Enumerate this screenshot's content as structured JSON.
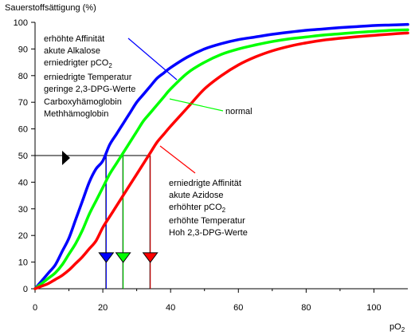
{
  "chart_data": {
    "type": "line",
    "title": "",
    "ylabel": "Sauerstoffsättigung (%)",
    "xlabel": "pO2",
    "xlabel_main": "pO",
    "xlabel_sub": "2",
    "xlim": [
      0,
      110
    ],
    "ylim": [
      0,
      100
    ],
    "x_ticks": [
      0,
      20,
      40,
      60,
      80,
      100
    ],
    "y_ticks": [
      0,
      10,
      20,
      30,
      40,
      50,
      60,
      70,
      80,
      90,
      100
    ],
    "grid": false,
    "series": [
      {
        "name": "",
        "color": "#0000ff",
        "p50": 21,
        "x": [
          0,
          2,
          4,
          6,
          8,
          10,
          12,
          14,
          16,
          18,
          20,
          22,
          24,
          26,
          28,
          30,
          32,
          34,
          36,
          38,
          40,
          45,
          50,
          55,
          60,
          65,
          70,
          75,
          80,
          85,
          90,
          95,
          100,
          105,
          110
        ],
        "y": [
          0,
          3,
          6,
          9,
          14,
          19,
          26,
          33,
          40,
          45,
          48,
          54,
          58,
          62,
          66,
          70,
          73,
          76,
          79,
          81,
          83,
          87,
          90,
          92,
          93.5,
          94.5,
          95.5,
          96.3,
          97,
          97.5,
          98,
          98.4,
          98.8,
          99,
          99.2
        ]
      },
      {
        "name": "normal",
        "color": "#00ff00",
        "p50": 26,
        "x": [
          0,
          2,
          4,
          6,
          8,
          10,
          12,
          14,
          16,
          18,
          20,
          22,
          24,
          26,
          28,
          30,
          32,
          34,
          36,
          38,
          40,
          45,
          50,
          55,
          60,
          65,
          70,
          75,
          80,
          85,
          90,
          95,
          100,
          105,
          110
        ],
        "y": [
          0,
          2,
          4,
          6,
          9,
          13,
          17,
          22,
          28,
          33,
          38,
          43,
          47,
          51,
          55,
          59,
          63,
          66,
          69,
          72,
          75,
          81,
          85,
          88,
          90,
          91.5,
          92.8,
          93.8,
          94.5,
          95.2,
          95.7,
          96.2,
          96.6,
          97,
          97.2
        ]
      },
      {
        "name": "",
        "color": "#ff0000",
        "p50": 34,
        "x": [
          0,
          2,
          4,
          6,
          8,
          10,
          12,
          14,
          16,
          18,
          20,
          22,
          24,
          26,
          28,
          30,
          32,
          34,
          36,
          38,
          40,
          45,
          50,
          55,
          60,
          65,
          70,
          75,
          80,
          85,
          90,
          95,
          100,
          105,
          110
        ],
        "y": [
          0,
          1,
          2,
          3.5,
          5,
          7,
          9.5,
          12,
          15,
          18,
          23,
          27,
          31,
          35,
          39,
          43,
          47,
          51,
          55,
          58,
          61,
          68,
          75,
          80,
          84,
          87,
          89.3,
          91,
          92.3,
          93.3,
          94,
          94.6,
          95.1,
          95.6,
          96
        ]
      }
    ],
    "reference_line_y": 50,
    "annotations": {
      "left_upper_lines": [
        "erhöhte Affinität",
        "akute Alkalose",
        "erniedrigter pCO",
        "erniedrigte Temperatur",
        "geringe 2,3-DPG-Werte",
        "Carboxyhämoglobin",
        "Methhämoglobin"
      ],
      "left_upper_sub": "2",
      "normal_label": "normal",
      "right_lower_lines": [
        "erniedrigte Affinität",
        "akute Azidose",
        "erhöhter pCO",
        "erhöhte Temperatur",
        "Hoh 2,3-DPG-Werte"
      ],
      "right_lower_sub": "2"
    }
  }
}
